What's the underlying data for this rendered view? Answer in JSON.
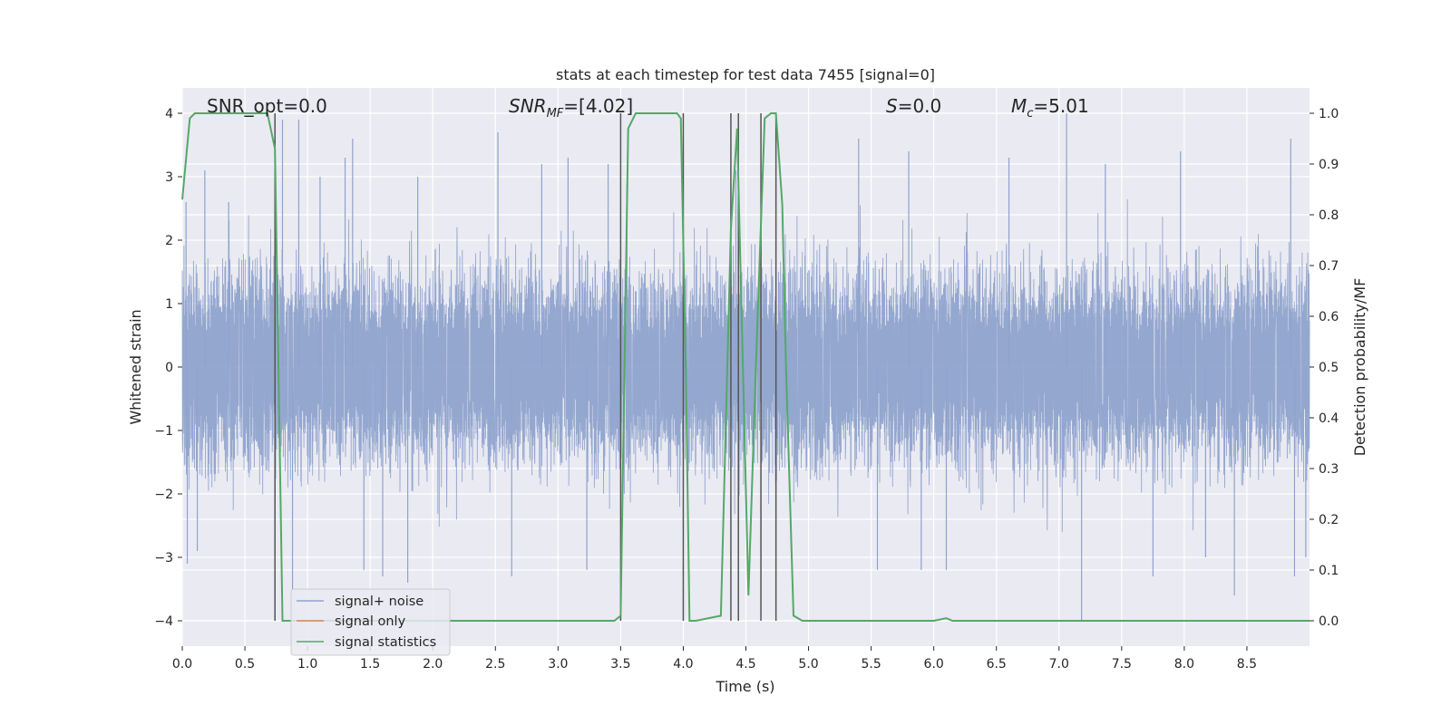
{
  "chart_data": {
    "type": "line",
    "title": "stats at each timestep for test data 7455 [signal=0]",
    "xlabel": "Time (s)",
    "ylabel_left": "Whitened strain",
    "ylabel_right": "Detection probability/MF",
    "xlim": [
      0.0,
      9.0
    ],
    "ylim_left": [
      -4.4,
      4.4
    ],
    "ylim_right": [
      -0.05,
      1.05
    ],
    "grid": true,
    "x_ticks": [
      "0.0",
      "0.5",
      "1.0",
      "1.5",
      "2.0",
      "2.5",
      "3.0",
      "3.5",
      "4.0",
      "4.5",
      "5.0",
      "5.5",
      "6.0",
      "6.5",
      "7.0",
      "7.5",
      "8.0",
      "8.5"
    ],
    "y_left_ticks": [
      "4",
      "3",
      "2",
      "1",
      "0",
      "−1",
      "−2",
      "−3",
      "−4"
    ],
    "y_right_ticks": [
      "1.0",
      "0.9",
      "0.8",
      "0.7",
      "0.6",
      "0.5",
      "0.4",
      "0.3",
      "0.2",
      "0.1",
      "0.0"
    ],
    "annotations": {
      "snr_opt": "SNR_opt=0.0",
      "snr_mf_main": "SNR",
      "snr_mf_sub": "MF",
      "snr_mf_value": "=[4.02]",
      "s_main": "S",
      "s_value": "=0.0",
      "mc_main": "M",
      "mc_sub": "c",
      "mc_value": "=5.01"
    },
    "legend": {
      "position": "lower-left",
      "entries": [
        "signal+ noise",
        "signal only",
        "signal statistics"
      ]
    },
    "colors": {
      "noise": "#8fa3cc",
      "signal": "#dd8452",
      "stats": "#55a868",
      "vlines": "#555555",
      "background": "#eaeaf2",
      "grid": "#ffffff"
    },
    "series": [
      {
        "name": "signal+ noise",
        "axis": "left",
        "description_free": true,
        "envelope": {
          "typical_abs": 2.0,
          "peaks": [
            [
              0.03,
              2.6
            ],
            [
              0.04,
              -3.1
            ],
            [
              0.12,
              -2.9
            ],
            [
              0.18,
              3.1
            ],
            [
              0.37,
              2.6
            ],
            [
              0.8,
              3.9
            ],
            [
              0.88,
              -3.5
            ],
            [
              0.93,
              3.9
            ],
            [
              1.1,
              3.0
            ],
            [
              1.3,
              3.3
            ],
            [
              1.36,
              3.6
            ],
            [
              1.45,
              -3.2
            ],
            [
              1.6,
              -3.3
            ],
            [
              1.8,
              -3.4
            ],
            [
              1.88,
              3.0
            ],
            [
              2.52,
              3.7
            ],
            [
              2.63,
              -3.3
            ],
            [
              2.87,
              3.2
            ],
            [
              3.08,
              3.3
            ],
            [
              3.23,
              -3.2
            ],
            [
              3.4,
              3.2
            ],
            [
              3.55,
              2.9
            ],
            [
              4.42,
              3.1
            ],
            [
              5.4,
              3.6
            ],
            [
              5.55,
              -3.2
            ],
            [
              5.8,
              3.4
            ],
            [
              5.9,
              -3.2
            ],
            [
              6.1,
              -3.2
            ],
            [
              6.6,
              3.3
            ],
            [
              7.06,
              4.0
            ],
            [
              7.18,
              -4.0
            ],
            [
              7.37,
              3.2
            ],
            [
              7.75,
              -3.3
            ],
            [
              7.97,
              3.4
            ],
            [
              8.17,
              -3.0
            ],
            [
              8.4,
              -3.6
            ],
            [
              8.85,
              3.6
            ],
            [
              8.88,
              -3.3
            ],
            [
              8.97,
              -3.0
            ]
          ]
        }
      },
      {
        "name": "signal only",
        "axis": "left",
        "values_note_free": true,
        "x": [
          0.0,
          9.0
        ],
        "y": [
          0.0,
          0.0
        ]
      },
      {
        "name": "signal statistics",
        "axis": "right",
        "x": [
          0.0,
          0.06,
          0.1,
          0.3,
          0.5,
          0.68,
          0.74,
          0.8,
          0.85,
          1.2,
          2.0,
          3.0,
          3.45,
          3.5,
          3.56,
          3.62,
          3.7,
          3.95,
          3.98,
          4.02,
          4.05,
          4.1,
          4.3,
          4.38,
          4.43,
          4.52,
          4.58,
          4.65,
          4.7,
          4.74,
          4.79,
          4.82,
          4.88,
          4.95,
          5.5,
          6.0,
          6.1,
          6.15,
          6.5,
          7.0,
          8.0,
          9.0
        ],
        "y": [
          0.83,
          0.99,
          1.0,
          1.0,
          1.0,
          1.0,
          0.93,
          0.0,
          0.0,
          0.0,
          0.0,
          0.0,
          0.0,
          0.01,
          0.97,
          1.0,
          1.0,
          1.0,
          0.99,
          0.5,
          0.0,
          0.0,
          0.01,
          0.77,
          0.97,
          0.05,
          0.5,
          0.99,
          1.0,
          1.0,
          0.82,
          0.5,
          0.01,
          0.0,
          0.0,
          0.0,
          0.005,
          0.0,
          0.0,
          0.0,
          0.0,
          0.0
        ]
      }
    ],
    "vlines_x": [
      0.74,
      3.5,
      4.0,
      4.38,
      4.44,
      4.62,
      4.74
    ]
  }
}
